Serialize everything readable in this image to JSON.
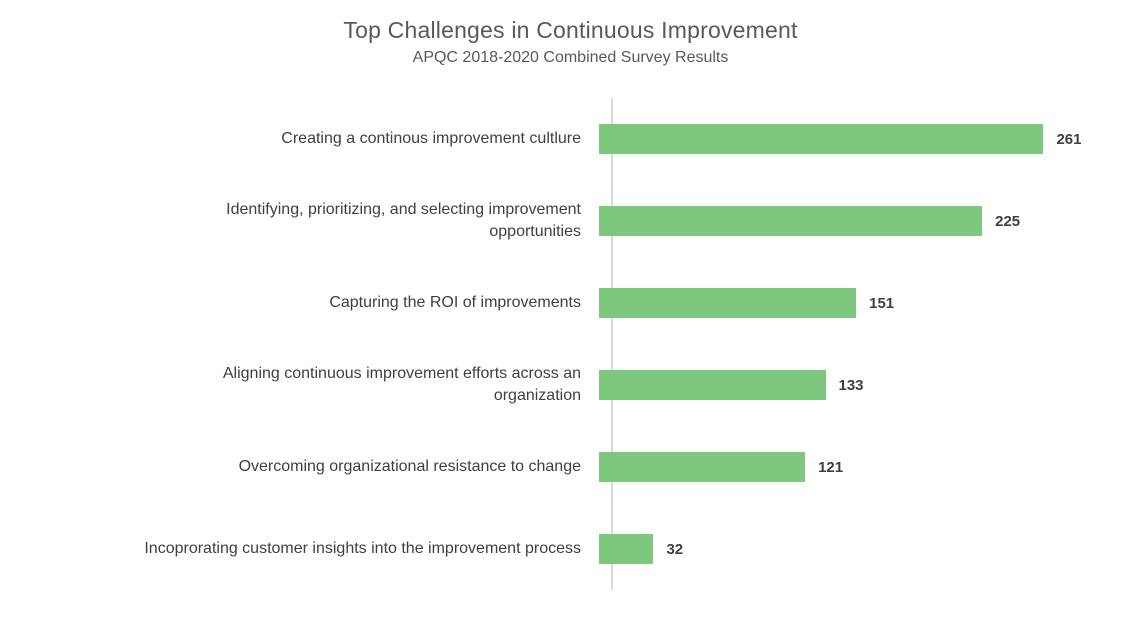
{
  "chart_data": {
    "type": "bar",
    "orientation": "horizontal",
    "title": "Top Challenges in Continuous Improvement",
    "subtitle": "APQC 2018-2020 Combined Survey Results",
    "categories": [
      "Creating a continous improvement cultlure",
      "Identifying, prioritizing, and selecting improvement opportunities",
      "Capturing the ROI of improvements",
      "Aligning continuous improvement efforts across an organization",
      "Overcoming organizational resistance to change",
      "Incoprorating customer insights into the improvement process"
    ],
    "category_label_lines": [
      [
        "Creating a continous improvement cultlure"
      ],
      [
        "Identifying, prioritizing, and selecting improvement",
        "opportunities"
      ],
      [
        "Capturing the ROI of improvements"
      ],
      [
        "Aligning continuous improvement efforts across an",
        "organization"
      ],
      [
        "Overcoming organizational resistance to change"
      ],
      [
        "Incoprorating customer insights into the improvement process"
      ]
    ],
    "values": [
      261,
      225,
      151,
      133,
      121,
      32
    ],
    "data_labels": [
      "261",
      "225",
      "151",
      "133",
      "121",
      "32"
    ],
    "xlabel": "",
    "ylabel": "",
    "xlim": [
      0,
      318
    ],
    "grid": false,
    "legend": false,
    "bar_color": "#7DC77E",
    "axis_line_color": "#D9D9D9",
    "title_color": "#595959",
    "label_color": "#3F3F3F"
  }
}
